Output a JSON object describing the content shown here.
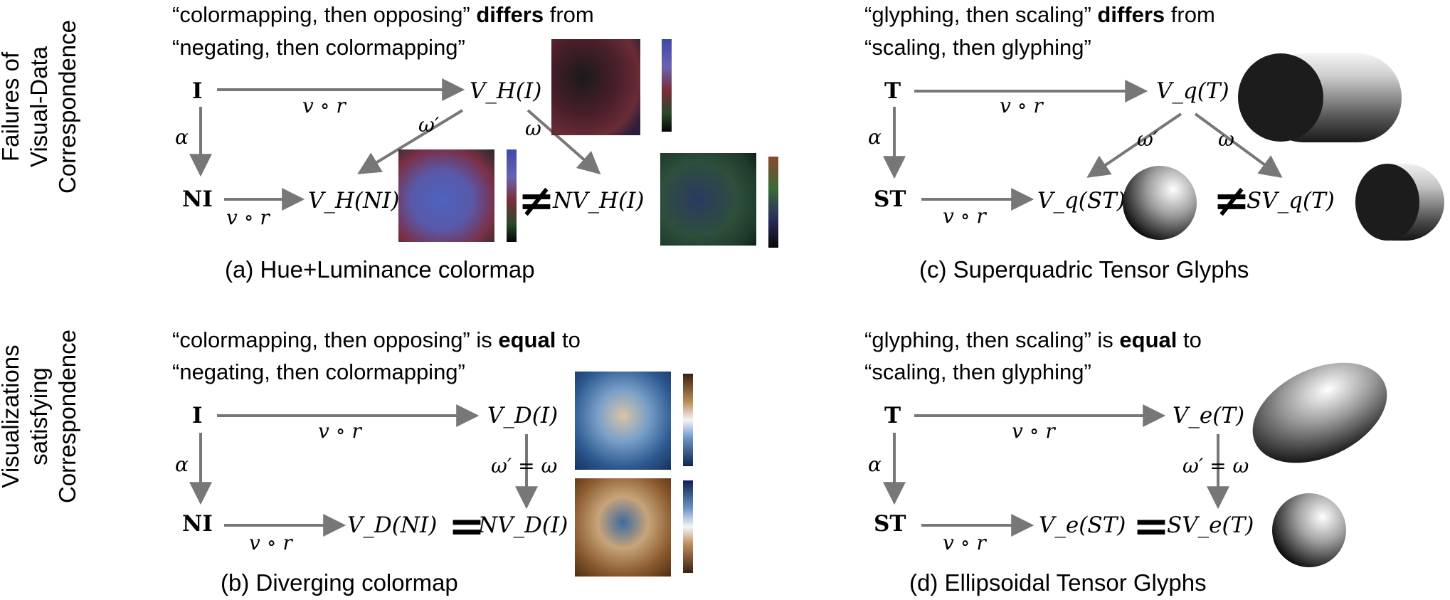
{
  "row_labels": {
    "top": [
      "Failures of",
      "Visual-Data",
      "Correspondence"
    ],
    "bottom": [
      "Visualizations",
      "satisfying",
      "Correspondence"
    ]
  },
  "panels": {
    "a": {
      "caption": "(a) Hue+Luminance colormap",
      "headline_1_pre": "“colormapping, then opposing” ",
      "headline_1_bold": "differs",
      "headline_1_post": " from",
      "headline_2": "“negating, then colormapping”",
      "src": "I",
      "src_neg": "NI",
      "map_top": "v ∘ r",
      "map_bottom": "v ∘ r",
      "alpha": "α",
      "vis_top": "V_H(I)",
      "vis_bottom": "V_H(NI)",
      "vis_neg": "NV_H(I)",
      "omega_prime": "ω′",
      "omega": "ω",
      "relation": "≠"
    },
    "b": {
      "caption": "(b) Diverging colormap",
      "headline_1_pre": "“colormapping, then opposing” is ",
      "headline_1_bold": "equal",
      "headline_1_post": " to",
      "headline_2": "“negating, then colormapping”",
      "src": "I",
      "src_neg": "NI",
      "map_top": "v ∘ r",
      "map_bottom": "v ∘ r",
      "alpha": "α",
      "vis_top": "V_D(I)",
      "vis_bottom": "V_D(NI)",
      "vis_neg": "NV_D(I)",
      "omega_eq": "ω′ = ω",
      "relation": "="
    },
    "c": {
      "caption": "(c) Superquadric Tensor Glyphs",
      "headline_1_pre": "“glyphing, then scaling” ",
      "headline_1_bold": "differs",
      "headline_1_post": " from",
      "headline_2": "“scaling, then glyphing”",
      "src": "T",
      "src_neg": "ST",
      "map_top": "v ∘ r",
      "map_bottom": "v ∘ r",
      "alpha": "α",
      "vis_top": "V_q(T)",
      "vis_bottom": "V_q(ST)",
      "vis_neg": "SV_q(T)",
      "omega_prime": "ω′",
      "omega": "ω",
      "relation": "≠"
    },
    "d": {
      "caption": "(d) Ellipsoidal Tensor Glyphs",
      "headline_1_pre": "“glyphing, then scaling” is ",
      "headline_1_bold": "equal",
      "headline_1_post": " to",
      "headline_2": "“scaling, then glyphing”",
      "src": "T",
      "src_neg": "ST",
      "map_top": "v ∘ r",
      "map_bottom": "v ∘ r",
      "alpha": "α",
      "vis_top": "V_e(T)",
      "vis_bottom": "V_e(ST)",
      "vis_neg": "SV_e(T)",
      "omega_eq": "ω′ = ω",
      "relation": "="
    }
  }
}
